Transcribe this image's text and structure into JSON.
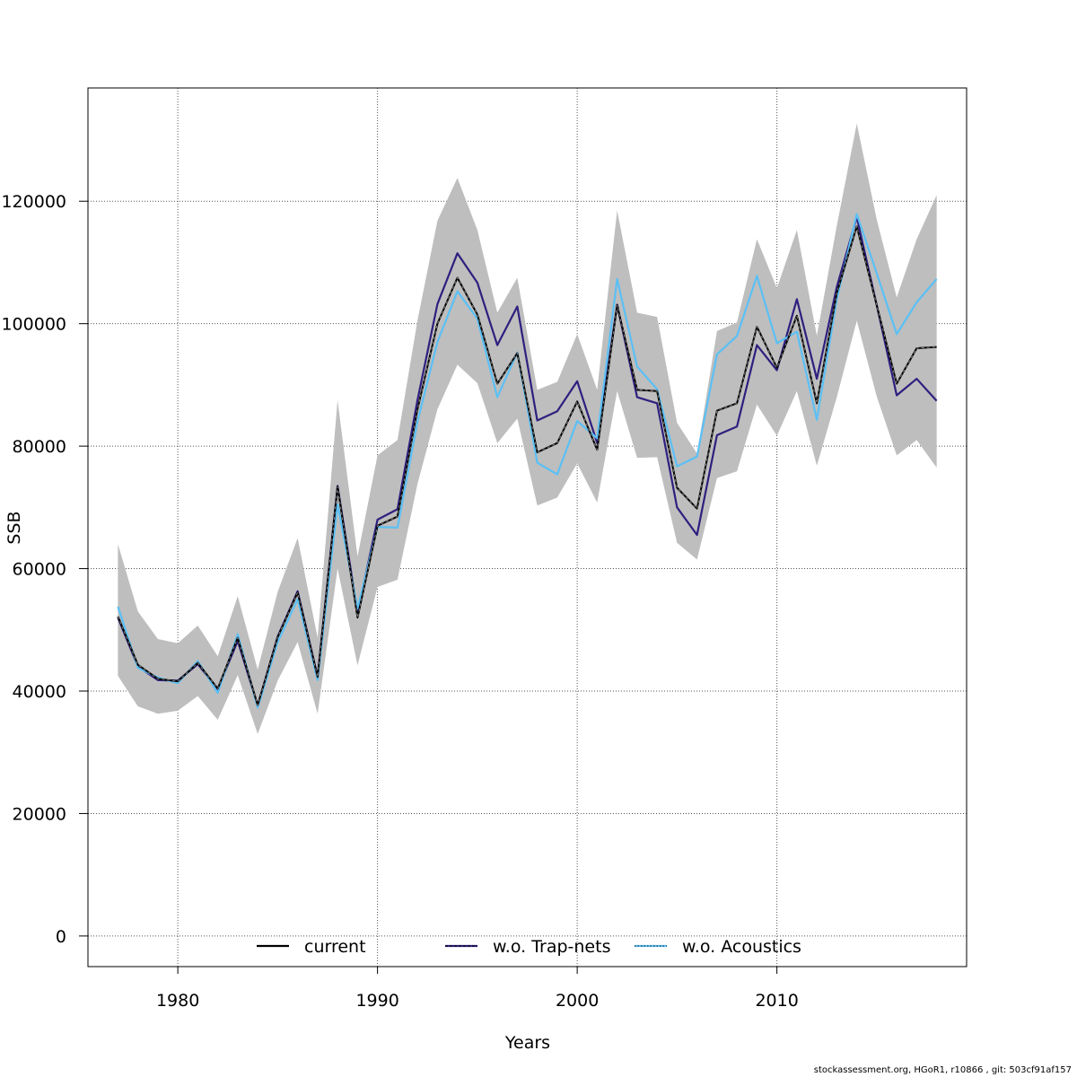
{
  "chart_data": {
    "type": "line",
    "xlabel": "Years",
    "ylabel": "SSB",
    "xlim": [
      1975.5,
      2019.5
    ],
    "ylim": [
      -5000,
      138500
    ],
    "x_ticks": [
      1980,
      1990,
      2000,
      2010
    ],
    "y_ticks": [
      0,
      20000,
      40000,
      60000,
      80000,
      100000,
      120000
    ],
    "y_tick_labels": [
      "0",
      "20000",
      "40000",
      "60000",
      "80000",
      "100000",
      "120000"
    ],
    "grid": true,
    "legend_position": "bottom",
    "years": [
      1977,
      1978,
      1979,
      1980,
      1981,
      1982,
      1983,
      1984,
      1985,
      1986,
      1987,
      1988,
      1989,
      1990,
      1991,
      1992,
      1993,
      1994,
      1995,
      1996,
      1997,
      1998,
      1999,
      2000,
      2001,
      2002,
      2003,
      2004,
      2005,
      2006,
      2007,
      2008,
      2009,
      2010,
      2011,
      2012,
      2013,
      2014,
      2015,
      2016,
      2017,
      2018
    ],
    "confidence_band": {
      "color": "#bebebe",
      "upper": [
        64000,
        53000,
        48500,
        47800,
        50700,
        45700,
        55500,
        43500,
        56200,
        65000,
        48700,
        87500,
        62000,
        78500,
        81000,
        100500,
        116800,
        123800,
        115300,
        101800,
        107500,
        89200,
        90500,
        98300,
        89200,
        118500,
        101800,
        101100,
        83800,
        78800,
        98800,
        100200,
        113800,
        105800,
        115300,
        98000,
        116000,
        132700,
        117000,
        104300,
        113800,
        121000
      ],
      "lower": [
        42500,
        37500,
        36300,
        36800,
        39200,
        35300,
        42600,
        33000,
        41700,
        48000,
        36300,
        60000,
        44200,
        57000,
        58200,
        73800,
        86000,
        93300,
        90300,
        80500,
        84500,
        70300,
        71600,
        77200,
        70800,
        89000,
        78100,
        78200,
        64200,
        61500,
        74800,
        75900,
        86800,
        81700,
        89000,
        76800,
        88000,
        100500,
        88100,
        78500,
        81000,
        76500
      ]
    },
    "series": [
      {
        "name": "current",
        "color": "#000000",
        "dash": "solid",
        "values": [
          52200,
          44300,
          42000,
          41600,
          44600,
          40400,
          48700,
          37700,
          48800,
          56100,
          42300,
          73400,
          52000,
          67000,
          68500,
          86000,
          100000,
          107500,
          101500,
          90200,
          95200,
          79000,
          80500,
          87300,
          79400,
          103000,
          89200,
          89000,
          73200,
          69800,
          85800,
          87000,
          99500,
          92800,
          101300,
          87000,
          105000,
          115900,
          103000,
          90200,
          96000,
          96200
        ]
      },
      {
        "name": "w.o. Trap-nets",
        "color": "#2e1f7f",
        "dash": "solid",
        "values": [
          52000,
          44000,
          41800,
          41700,
          44400,
          40300,
          48200,
          37600,
          48900,
          56300,
          42400,
          73500,
          52800,
          68000,
          69700,
          87500,
          103200,
          111500,
          106700,
          96500,
          102800,
          84200,
          85700,
          90600,
          80500,
          103100,
          88000,
          87000,
          70000,
          65500,
          81800,
          83200,
          96500,
          92400,
          104000,
          91000,
          106000,
          117400,
          103000,
          88300,
          91000,
          87400
        ]
      },
      {
        "name": "w.o. Acoustics",
        "color": "#5bc0f5",
        "dash": "solid",
        "values": [
          53800,
          43800,
          42200,
          41300,
          44900,
          39700,
          49300,
          37300,
          48000,
          55000,
          41800,
          70500,
          53500,
          66800,
          66700,
          84000,
          97000,
          105300,
          100800,
          88000,
          95300,
          77300,
          75400,
          84100,
          81300,
          107300,
          93000,
          89300,
          76700,
          78300,
          95000,
          98000,
          107800,
          96800,
          98700,
          84300,
          104000,
          117900,
          108200,
          98300,
          103500,
          107300
        ]
      }
    ],
    "legend": [
      {
        "label": "current",
        "color": "#000000",
        "style": "solid"
      },
      {
        "label": "w.o. Trap-nets",
        "color": "#2e1f7f",
        "style": "solid-dashed"
      },
      {
        "label": "w.o. Acoustics",
        "color": "#5bc0f5",
        "style": "solid-dotted"
      }
    ]
  },
  "footer": "stockassessment.org, HGoR1, r10866 , git: 503cf91af157"
}
